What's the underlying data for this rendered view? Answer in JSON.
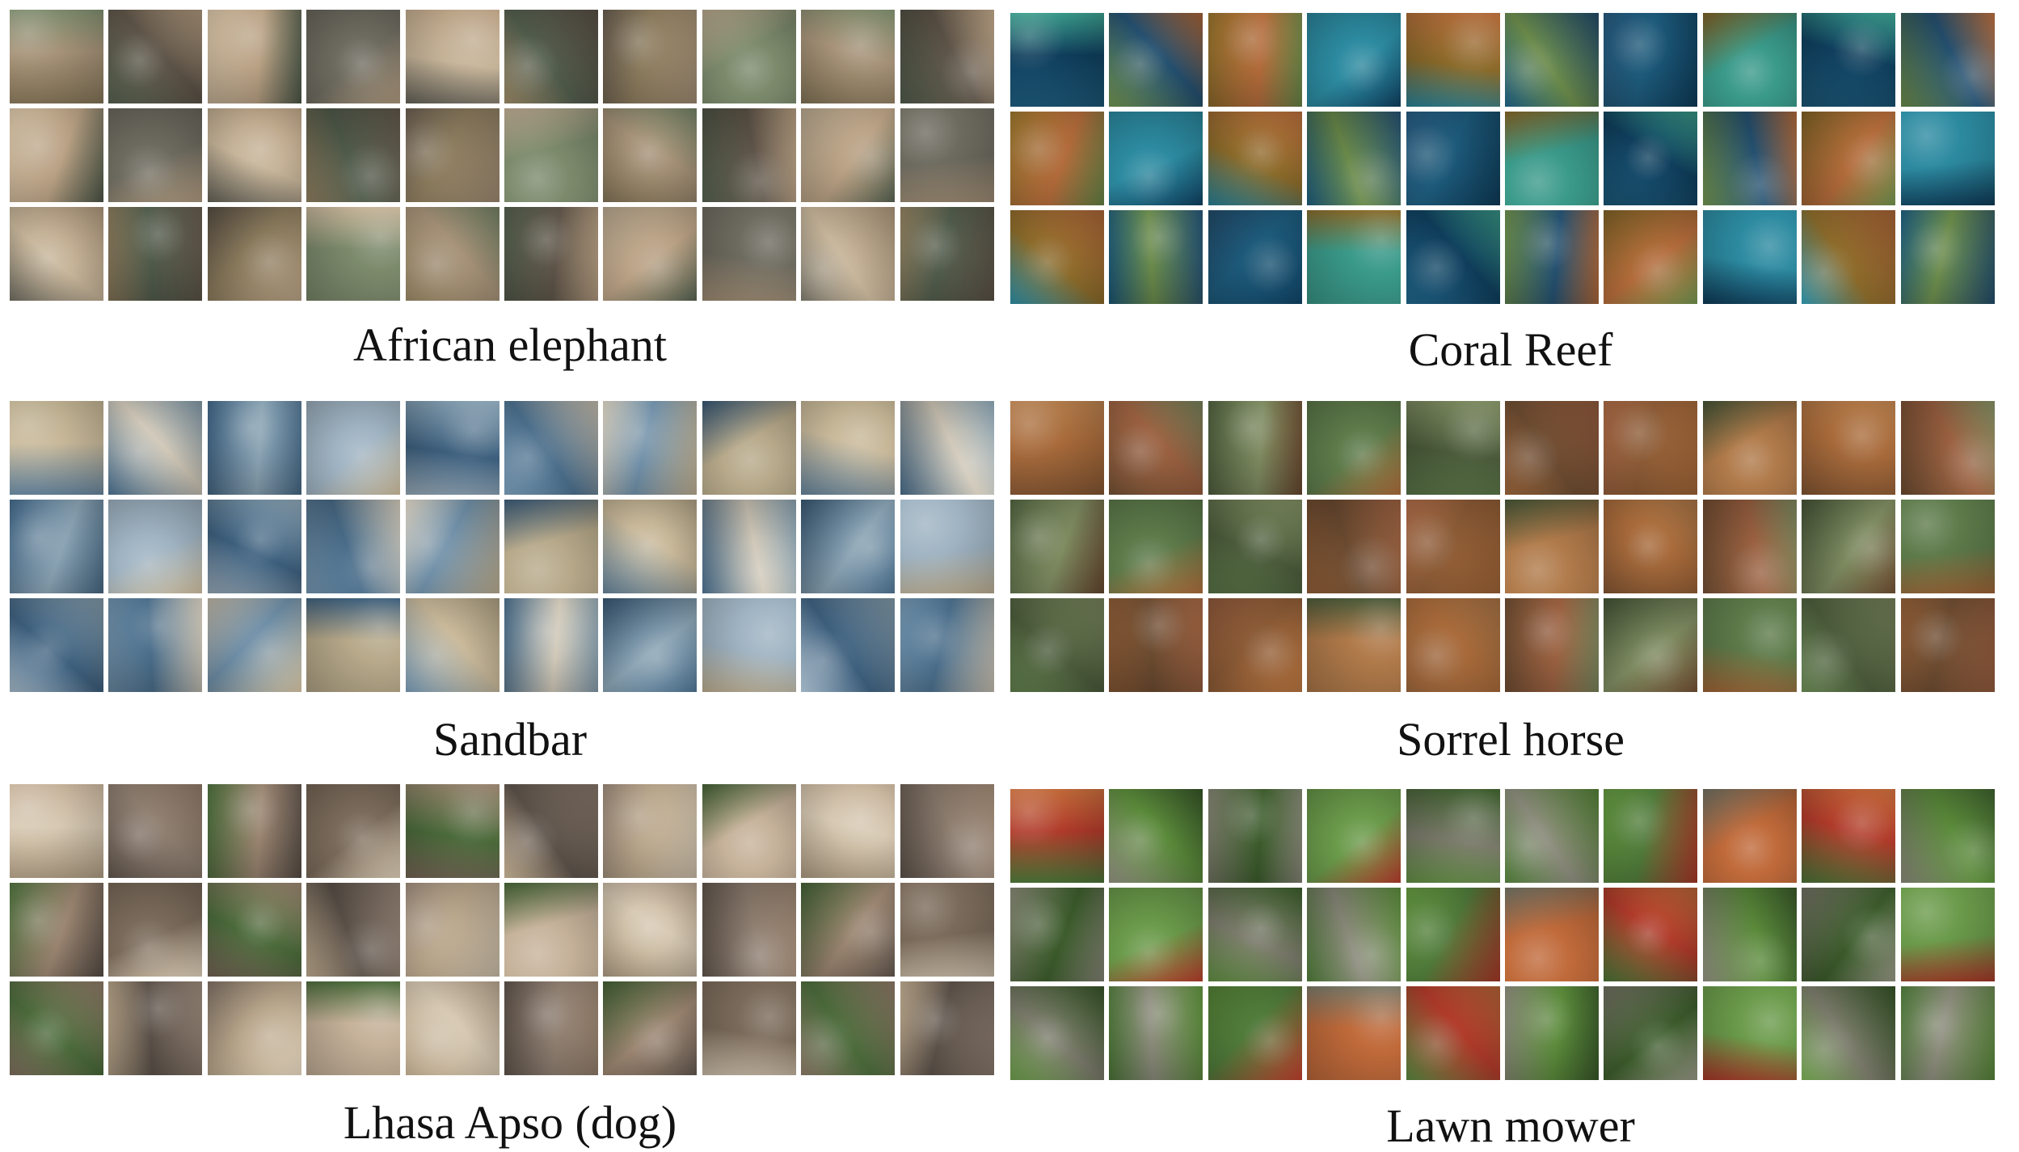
{
  "panels": [
    {
      "id": "african-elephant",
      "label": "African elephant",
      "palette": [
        "#8a7a5c",
        "#6d6a5f",
        "#a69278",
        "#4f5a4a",
        "#b9a184",
        "#7c8a6c",
        "#c7b59a",
        "#5e5448"
      ]
    },
    {
      "id": "coral-reef",
      "label": "Coral Reef",
      "palette": [
        "#1d5a7a",
        "#2c8aa0",
        "#0f3e5c",
        "#6a8a4a",
        "#b26a3a",
        "#3a9a8a",
        "#8a6a2a",
        "#245070"
      ]
    },
    {
      "id": "sandbar",
      "label": "Sandbar",
      "palette": [
        "#6f8fa8",
        "#9fb3c2",
        "#c9b99a",
        "#4a6d8a",
        "#8aa3b3",
        "#b7a98a",
        "#3d5f7d",
        "#d0c8b8"
      ]
    },
    {
      "id": "sorrel-horse",
      "label": "Sorrel horse",
      "palette": [
        "#8a5a35",
        "#5d7a4a",
        "#a86a3a",
        "#6a4a30",
        "#7d8a60",
        "#b07a4a",
        "#4a5a3a",
        "#9a6040"
      ]
    },
    {
      "id": "lhasa-apso-dog",
      "label": "Lhasa Apso (dog)",
      "palette": [
        "#b8a58a",
        "#7a6a5a",
        "#d7c9b3",
        "#5a5048",
        "#9a8470",
        "#c6b29a",
        "#4a6a3a",
        "#8e7e70"
      ]
    },
    {
      "id": "lawn-mower",
      "label": "Lawn mower",
      "palette": [
        "#4f7a3a",
        "#6a9a4a",
        "#b03a2a",
        "#8a8a7a",
        "#3a5a2a",
        "#c06a3a",
        "#7a7a6a",
        "#5a8a3a"
      ]
    }
  ]
}
